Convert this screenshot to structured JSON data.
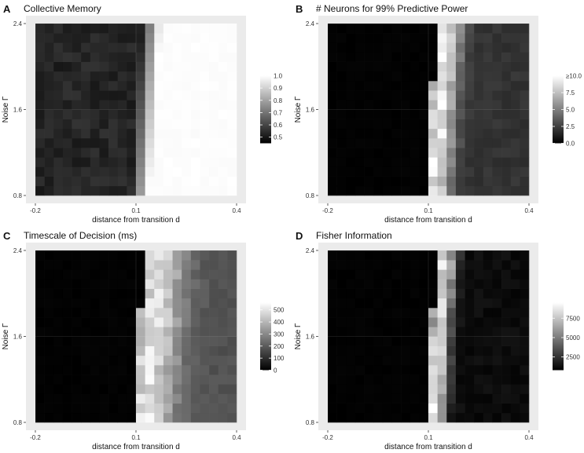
{
  "chart_data": [
    {
      "type": "heatmap",
      "letter": "A",
      "title": "Collective Memory",
      "xlabel": "distance from transition d",
      "ylabel": "Noise Γ",
      "x_ticks": [
        "-0.2",
        "0.1",
        "0.4"
      ],
      "y_ticks": [
        "0.8",
        "1.6",
        "2.4"
      ],
      "xlim": [
        -0.2,
        0.4
      ],
      "ylim": [
        0.8,
        2.4
      ],
      "grid_cols": 22,
      "grid_rows": 18,
      "boundary": [
        0.1,
        0.12,
        0.14,
        0.16
      ],
      "peak_width": 0,
      "legend": {
        "labels": [
          "1.0",
          "0.9",
          "0.8",
          "0.7",
          "0.6",
          "0.5"
        ],
        "min": 0.45,
        "max": 1.0,
        "values": [
          1.0,
          0.9,
          0.8,
          0.7,
          0.6,
          0.5
        ]
      },
      "summary": {
        "low_value": 0.5,
        "high_value": 1.0
      }
    },
    {
      "type": "heatmap",
      "letter": "B",
      "title": "# Neurons for 99% Predictive Power",
      "xlabel": "distance from transition d",
      "ylabel": "Noise Γ",
      "x_ticks": [
        "-0.2",
        "0.1",
        "0.4"
      ],
      "y_ticks": [
        "0.8",
        "1.6",
        "2.4"
      ],
      "xlim": [
        -0.2,
        0.4
      ],
      "ylim": [
        0.8,
        2.4
      ],
      "grid_cols": 22,
      "grid_rows": 18,
      "boundary": [
        0.1,
        0.12,
        0.14,
        0.16
      ],
      "peak_width": 3,
      "legend": {
        "labels": [
          "≥10.0",
          "7.5",
          "5.0",
          "2.5",
          "0.0"
        ],
        "min": 0.0,
        "max": 10.0,
        "values": [
          10.0,
          7.5,
          5.0,
          2.5,
          0.0
        ]
      },
      "summary": {
        "low_value": 0.0,
        "peak_value": 10.0,
        "tail_value": 2.0
      }
    },
    {
      "type": "heatmap",
      "letter": "C",
      "title": "Timescale of Decision (ms)",
      "xlabel": "distance from transition d",
      "ylabel": "Noise Γ",
      "x_ticks": [
        "-0.2",
        "0.1",
        "0.4"
      ],
      "y_ticks": [
        "0.8",
        "1.6",
        "2.4"
      ],
      "xlim": [
        -0.2,
        0.4
      ],
      "ylim": [
        0.8,
        2.4
      ],
      "grid_cols": 22,
      "grid_rows": 18,
      "boundary": [
        0.1,
        0.12,
        0.14,
        0.16
      ],
      "peak_width": 6,
      "legend": {
        "labels": [
          "500",
          "400",
          "300",
          "200",
          "100",
          "0"
        ],
        "min": 0,
        "max": 560,
        "values": [
          500,
          400,
          300,
          200,
          100,
          0
        ]
      },
      "summary": {
        "low_value": 0,
        "peak_value": 520,
        "tail_value": 180
      }
    },
    {
      "type": "heatmap",
      "letter": "D",
      "title": "Fisher Information",
      "xlabel": "distance from transition d",
      "ylabel": "Noise Γ",
      "x_ticks": [
        "-0.2",
        "0.1",
        "0.4"
      ],
      "y_ticks": [
        "0.8",
        "1.6",
        "2.4"
      ],
      "xlim": [
        -0.2,
        0.4
      ],
      "ylim": [
        0.8,
        2.4
      ],
      "grid_cols": 22,
      "grid_rows": 18,
      "boundary": [
        0.1,
        0.12,
        0.14,
        0.16
      ],
      "peak_width": 2,
      "legend": {
        "labels": [
          "7500",
          "5000",
          "2500"
        ],
        "min": 800,
        "max": 9500,
        "values": [
          7500,
          5000,
          2500
        ]
      },
      "summary": {
        "low_value": 800,
        "peak_value": 9500,
        "tail_value": 1200
      }
    }
  ]
}
